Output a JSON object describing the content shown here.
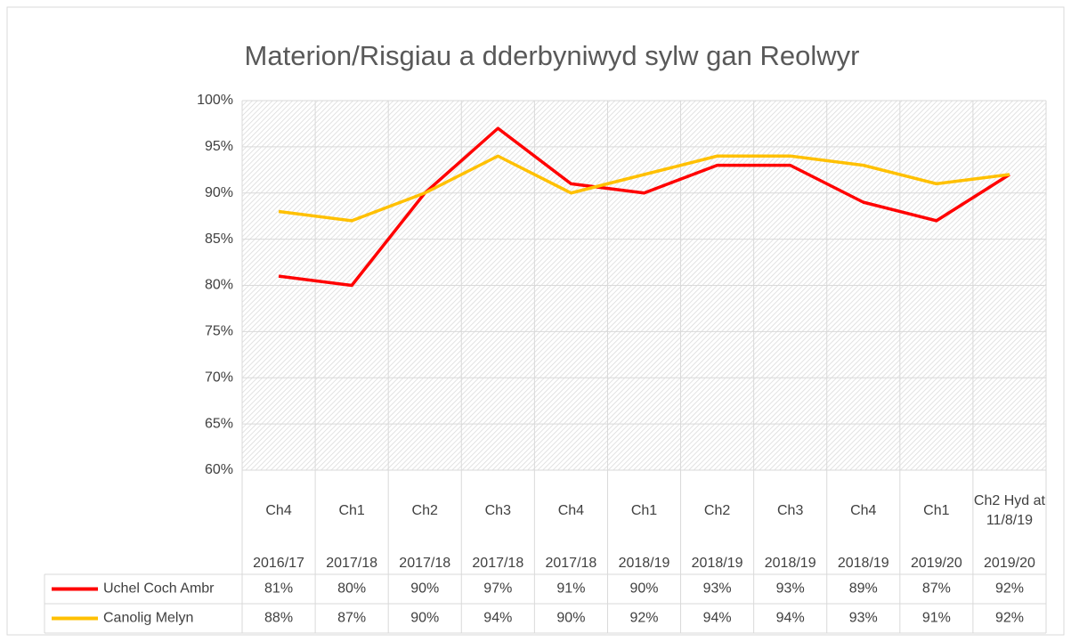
{
  "chart_data": {
    "type": "line",
    "title": "Materion/Risgiau a dderbyniwyd sylw gan Reolwyr",
    "categories": [
      "Ch4",
      "Ch1",
      "Ch2",
      "Ch3",
      "Ch4",
      "Ch1",
      "Ch2",
      "Ch3",
      "Ch4",
      "Ch1",
      "Ch2 Hyd at 11/8/19"
    ],
    "category_years": [
      "2016/17",
      "2017/18",
      "2017/18",
      "2017/18",
      "2017/18",
      "2018/19",
      "2018/19",
      "2018/19",
      "2018/19",
      "2019/20",
      "2019/20"
    ],
    "series": [
      {
        "name": "Uchel Coch Ambr",
        "color": "#ff0000",
        "values": [
          81,
          80,
          90,
          97,
          91,
          90,
          93,
          93,
          89,
          87,
          92
        ],
        "value_labels": [
          "81%",
          "80%",
          "90%",
          "97%",
          "91%",
          "90%",
          "93%",
          "93%",
          "89%",
          "87%",
          "92%"
        ]
      },
      {
        "name": "Canolig Melyn",
        "color": "#ffc000",
        "values": [
          88,
          87,
          90,
          94,
          90,
          92,
          94,
          94,
          93,
          91,
          92
        ],
        "value_labels": [
          "88%",
          "87%",
          "90%",
          "94%",
          "90%",
          "92%",
          "94%",
          "94%",
          "93%",
          "91%",
          "92%"
        ]
      }
    ],
    "ylim": [
      60,
      100
    ],
    "yticks": [
      {
        "value": 60,
        "label": "60%"
      },
      {
        "value": 65,
        "label": "65%"
      },
      {
        "value": 70,
        "label": "70%"
      },
      {
        "value": 75,
        "label": "75%"
      },
      {
        "value": 80,
        "label": "80%"
      },
      {
        "value": 85,
        "label": "85%"
      },
      {
        "value": 90,
        "label": "90%"
      },
      {
        "value": 95,
        "label": "95%"
      },
      {
        "value": 100,
        "label": "100%"
      }
    ],
    "grid": true
  }
}
